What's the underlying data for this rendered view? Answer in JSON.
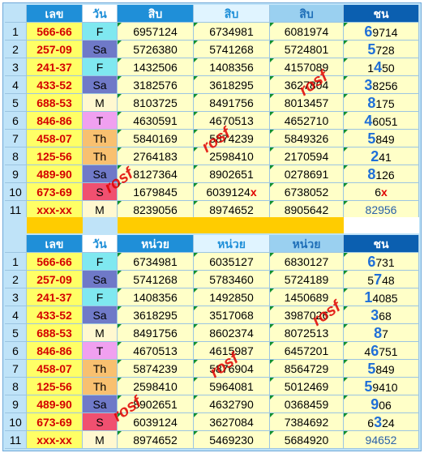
{
  "top": {
    "headers": [
      "",
      "เลข",
      "วัน",
      "สิบ",
      "สิบ",
      "สิบ",
      "ชน"
    ],
    "rows": [
      {
        "n": "1",
        "code": "566-66",
        "day": "F",
        "a": "6957124",
        "b": "6734981",
        "c": "6081974",
        "chon_hl": "6",
        "chon_rest": "9714"
      },
      {
        "n": "2",
        "code": "257-09",
        "day": "Sa",
        "a": "5726380",
        "b": "5741268",
        "c": "5724801",
        "chon_hl": "5",
        "chon_rest": "728"
      },
      {
        "n": "3",
        "code": "241-37",
        "day": "F",
        "a": "1432506",
        "b": "1408356",
        "c": "4157089",
        "chon_pre": "1",
        "chon_hl": "4",
        "chon_rest": "50"
      },
      {
        "n": "4",
        "code": "433-52",
        "day": "Sa",
        "a": "3182576",
        "b": "3618295",
        "c": "3627804",
        "chon_hl": "3",
        "chon_rest": "8256"
      },
      {
        "n": "5",
        "code": "688-53",
        "day": "M",
        "a": "8103725",
        "b": "8491756",
        "c": "8013457",
        "chon_hl": "8",
        "chon_rest": "175"
      },
      {
        "n": "6",
        "code": "846-86",
        "day": "T",
        "a": "4630591",
        "b": "4670513",
        "c": "4652710",
        "chon_hl": "4",
        "chon_rest": "6051"
      },
      {
        "n": "7",
        "code": "458-07",
        "day": "Th",
        "a": "5840169",
        "b": "5874239",
        "c": "5849326",
        "chon_hl": "5",
        "chon_rest": "849"
      },
      {
        "n": "8",
        "code": "125-56",
        "day": "Th",
        "a": "2764183",
        "b": "2598410",
        "c": "2170594",
        "chon_hl": "2",
        "chon_rest": "41"
      },
      {
        "n": "9",
        "code": "489-90",
        "day": "Sa",
        "a": "8127364",
        "b": "8902651",
        "c": "0278691",
        "chon_hl": "8",
        "chon_rest": "126"
      },
      {
        "n": "10",
        "code": "673-69",
        "day": "S",
        "a": "1679845",
        "b": "6039124",
        "b_mark": "x",
        "c": "6738052",
        "chon_rest": "6",
        "chon_mark": "x"
      },
      {
        "n": "11",
        "code": "xxx-xx",
        "day": "M",
        "a": "8239056",
        "b": "8974652",
        "c": "8905642",
        "chon_rest": "82956"
      }
    ]
  },
  "bottom": {
    "headers": [
      "",
      "เลข",
      "วัน",
      "หน่วย",
      "หน่วย",
      "หน่วย",
      "ชน"
    ],
    "rows": [
      {
        "n": "1",
        "code": "566-66",
        "day": "F",
        "a": "6734981",
        "b": "6035127",
        "c": "6830127",
        "chon_hl": "6",
        "chon_rest": "731"
      },
      {
        "n": "2",
        "code": "257-09",
        "day": "Sa",
        "a": "5741268",
        "b": "5783460",
        "c": "5724189",
        "chon_pre": "5",
        "chon_hl": "7",
        "chon_rest": "48"
      },
      {
        "n": "3",
        "code": "241-37",
        "day": "F",
        "a": "1408356",
        "b": "1492850",
        "c": "1450689",
        "chon_hl": "1",
        "chon_rest": "4085"
      },
      {
        "n": "4",
        "code": "433-52",
        "day": "Sa",
        "a": "3618295",
        "b": "3517068",
        "c": "3987026",
        "chon_hl": "3",
        "chon_rest": "68"
      },
      {
        "n": "5",
        "code": "688-53",
        "day": "M",
        "a": "8491756",
        "b": "8602374",
        "c": "8072513",
        "chon_hl": "8",
        "chon_rest": "7"
      },
      {
        "n": "6",
        "code": "846-86",
        "day": "T",
        "a": "4670513",
        "b": "4615987",
        "c": "6457201",
        "chon_pre": "4",
        "chon_hl": "6",
        "chon_rest": "751"
      },
      {
        "n": "7",
        "code": "458-07",
        "day": "Th",
        "a": "5874239",
        "b": "5876904",
        "c": "8564729",
        "chon_hl": "5",
        "chon_rest": "849"
      },
      {
        "n": "8",
        "code": "125-56",
        "day": "Th",
        "a": "2598410",
        "b": "5964081",
        "c": "5012469",
        "chon_hl": "5",
        "chon_rest": "9410"
      },
      {
        "n": "9",
        "code": "489-90",
        "day": "Sa",
        "a": "8902651",
        "b": "4632790",
        "c": "0368459",
        "chon_hl": "9",
        "chon_rest": "06"
      },
      {
        "n": "10",
        "code": "673-69",
        "day": "S",
        "a": "6039124",
        "b": "3627084",
        "c": "7384692",
        "chon_pre": "6",
        "chon_hl": "3",
        "chon_rest": "24"
      },
      {
        "n": "11",
        "code": "xxx-xx",
        "day": "M",
        "a": "8974652",
        "b": "5469230",
        "c": "5684920",
        "chon_rest": "94652"
      }
    ]
  },
  "watermark": "rosf",
  "colors": {
    "header_blue": "#1f8fd8",
    "chon_blue": "#0b5fb0",
    "code_red": "#d40000",
    "num_bg": "#ffffc8",
    "sep_yellow": "#ffcc00"
  }
}
